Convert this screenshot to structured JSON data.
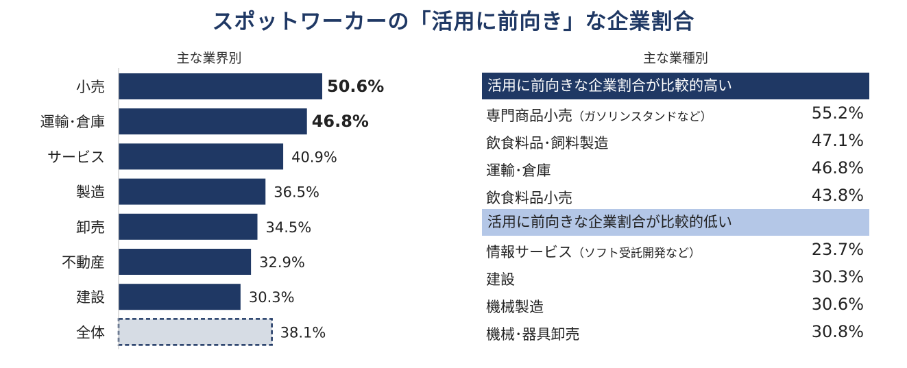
{
  "title": "スポットワーカーの「活用に前向き」な企業割合",
  "chart_data": {
    "type": "bar",
    "orientation": "horizontal",
    "title": "主な業界別",
    "categories": [
      "小売",
      "運輸･倉庫",
      "サービス",
      "製造",
      "卸売",
      "不動産",
      "建設",
      "全体"
    ],
    "values": [
      50.6,
      46.8,
      40.9,
      36.5,
      34.5,
      32.9,
      30.3,
      38.1
    ],
    "value_labels": [
      "50.6%",
      "46.8%",
      "40.9%",
      "36.5%",
      "34.5%",
      "32.9%",
      "30.3%",
      "38.1%"
    ],
    "bold_labels": [
      true,
      true,
      false,
      false,
      false,
      false,
      false,
      false
    ],
    "highlight_last": true,
    "xlim": [
      0,
      100
    ],
    "colors": {
      "bar": "#1f3864",
      "total_fill": "#d6dce4",
      "total_border": "#1f3864"
    }
  },
  "industry_table": {
    "title": "主な業種別",
    "sections": [
      {
        "header": "活用に前向きな企業割合が比較的高い",
        "style": "high",
        "rows": [
          {
            "label": "専門商品小売",
            "note": "（ガソリンスタンドなど）",
            "value": "55.2%"
          },
          {
            "label": "飲食料品･飼料製造",
            "note": "",
            "value": "47.1%"
          },
          {
            "label": "運輸･倉庫",
            "note": "",
            "value": "46.8%"
          },
          {
            "label": "飲食料品小売",
            "note": "",
            "value": "43.8%"
          }
        ]
      },
      {
        "header": "活用に前向きな企業割合が比較的低い",
        "style": "low",
        "rows": [
          {
            "label": "情報サービス",
            "note": "（ソフト受託開発など）",
            "value": "23.7%"
          },
          {
            "label": "建設",
            "note": "",
            "value": "30.3%"
          },
          {
            "label": "機械製造",
            "note": "",
            "value": "30.6%"
          },
          {
            "label": "機械･器具卸売",
            "note": "",
            "value": "30.8%"
          }
        ]
      }
    ]
  }
}
